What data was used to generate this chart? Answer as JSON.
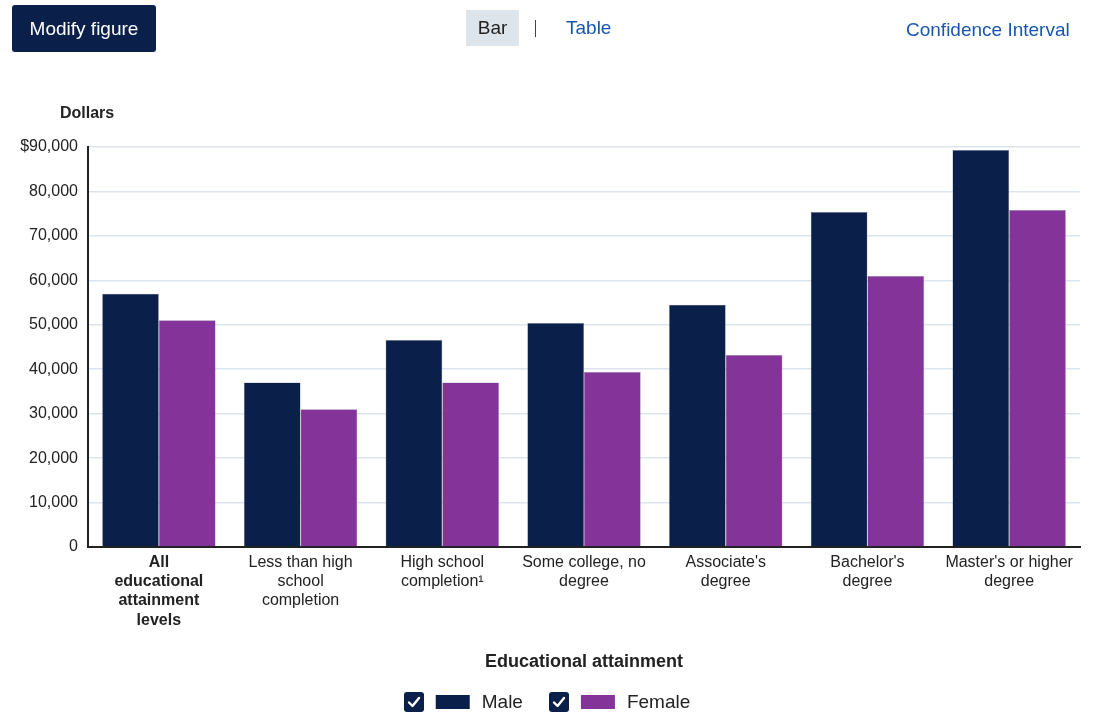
{
  "chart_data": {
    "type": "bar",
    "xlabel": "Educational attainment",
    "ylabel": "Dollars",
    "categories": [
      "All educational attainment levels",
      "Less than high school completion",
      "High school completion¹",
      "Some college, no degree",
      "Associate's degree",
      "Bachelor's degree",
      "Master's or higher degree"
    ],
    "series": [
      {
        "name": "Male",
        "color": "#0a1f4a",
        "values": [
          57000,
          37000,
          46600,
          50400,
          54500,
          75400,
          89300
        ]
      },
      {
        "name": "Female",
        "color": "#843399",
        "values": [
          51000,
          31000,
          37000,
          39400,
          43200,
          61000,
          75800
        ]
      }
    ],
    "ylim": [
      0,
      90000
    ],
    "yticks": [
      {
        "value": 0,
        "label": "0"
      },
      {
        "value": 10000,
        "label": "10,000"
      },
      {
        "value": 20000,
        "label": "20,000"
      },
      {
        "value": 30000,
        "label": "30,000"
      },
      {
        "value": 40000,
        "label": "40,000"
      },
      {
        "value": 50000,
        "label": "50,000"
      },
      {
        "value": 60000,
        "label": "60,000"
      },
      {
        "value": 70000,
        "label": "70,000"
      },
      {
        "value": 80000,
        "label": "80,000"
      },
      {
        "value": 90000,
        "label": "$90,000"
      }
    ],
    "grid": "y",
    "legend": "bottom",
    "annotations": [
      "Modify figure",
      "Bar",
      "Table",
      "Confidence Interval"
    ]
  }
}
